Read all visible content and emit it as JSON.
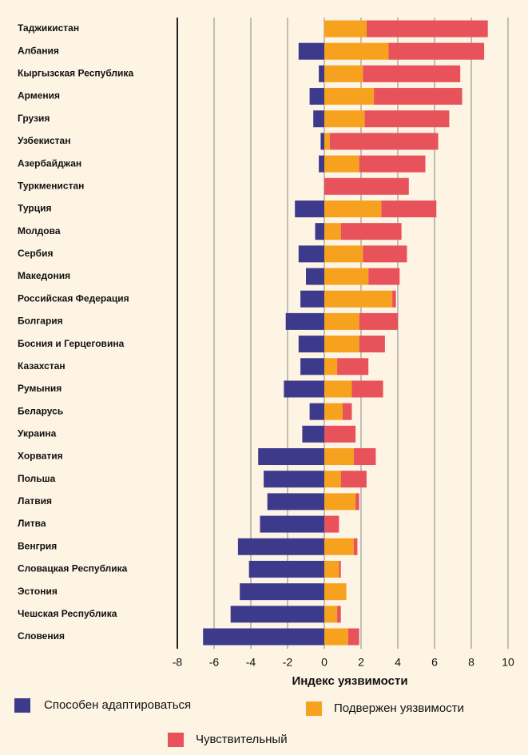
{
  "chart_data": {
    "type": "bar",
    "orientation": "horizontal",
    "stacked": true,
    "x_label": "Индекс уязвимости",
    "categories": [
      "Таджикистан",
      "Албания",
      "Кыргызская Республика",
      "Армения",
      "Грузия",
      "Узбекистан",
      "Азербайджан",
      "Туркменистан",
      "Турция",
      "Молдова",
      "Сербия",
      "Македония",
      "Российская Федерация",
      "Болгария",
      "Босния и Герцеговина",
      "Казахстан",
      "Румыния",
      "Беларусь",
      "Украина",
      "Хорватия",
      "Польша",
      "Латвия",
      "Литва",
      "Венгрия",
      "Словацкая Республика",
      "Эстония",
      "Чешская Республика",
      "Словения"
    ],
    "series": [
      {
        "name": "Способен адаптироваться",
        "color": "#3d3a8c",
        "values": [
          0,
          -1.4,
          -0.3,
          -0.8,
          -0.6,
          -0.2,
          -0.3,
          0,
          -1.6,
          -0.5,
          -1.4,
          -1.0,
          -1.3,
          -2.1,
          -1.4,
          -1.3,
          -2.2,
          -0.8,
          -1.2,
          -3.6,
          -3.3,
          -3.1,
          -3.5,
          -4.7,
          -4.1,
          -4.6,
          -5.1,
          -6.6
        ]
      },
      {
        "name": "Подвержен уязвимости",
        "color": "#f6a21e",
        "values": [
          2.3,
          3.5,
          2.1,
          2.7,
          2.2,
          0.3,
          1.9,
          0,
          3.1,
          0.9,
          2.1,
          2.4,
          3.7,
          1.9,
          1.9,
          0.7,
          1.5,
          1.0,
          0,
          1.6,
          0.9,
          1.7,
          0,
          1.6,
          0.8,
          1.2,
          0.7,
          1.3
        ]
      },
      {
        "name": "Чувствительный",
        "color": "#e8525a",
        "values": [
          6.6,
          5.2,
          5.3,
          4.8,
          4.6,
          5.9,
          3.6,
          4.6,
          3.0,
          3.3,
          2.4,
          1.7,
          0.2,
          2.1,
          1.4,
          1.7,
          1.7,
          0.5,
          1.7,
          1.2,
          1.4,
          0.2,
          0.8,
          0.2,
          0.1,
          0,
          0.2,
          0.6
        ]
      }
    ],
    "xlim": [
      -8,
      10
    ],
    "xticks": [
      -8,
      -6,
      -4,
      -2,
      0,
      2,
      4,
      6,
      8,
      10
    ],
    "grid": true
  }
}
